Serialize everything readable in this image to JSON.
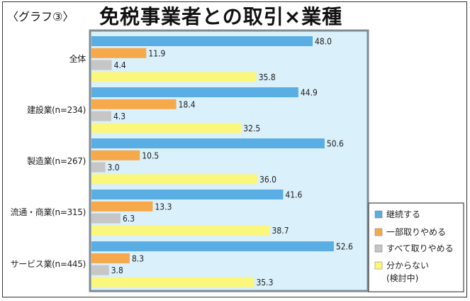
{
  "label": "〈グラフ③〉",
  "title": "免税事業者との取引×業種",
  "colors": {
    "plot_bg": "#daf0fb",
    "plot_border": "#7f8c93",
    "series": [
      "#5aaee3",
      "#f6a94b",
      "#c6c6c6",
      "#fbf77c"
    ]
  },
  "chart_data": {
    "type": "bar",
    "orientation": "horizontal",
    "xlim": [
      0,
      55
    ],
    "grid": false,
    "legend_position": "bottom-right",
    "categories": [
      "全体",
      "建設業(n=234)",
      "製造業(n=267)",
      "流通・商業(n=315)",
      "サービス業(n=445)"
    ],
    "series": [
      {
        "name": "継続する",
        "values": [
          48.0,
          44.9,
          50.6,
          41.6,
          52.6
        ]
      },
      {
        "name": "一部取りやめる",
        "values": [
          11.9,
          18.4,
          10.5,
          13.3,
          8.3
        ]
      },
      {
        "name": "すべて取りやめる",
        "values": [
          4.4,
          4.3,
          3.0,
          6.3,
          3.8
        ]
      },
      {
        "name": "分からない(検討中)",
        "values": [
          35.8,
          32.5,
          36.0,
          38.7,
          35.3
        ]
      }
    ],
    "value_labels": [
      [
        "48.0",
        "44.9",
        "50.6",
        "41.6",
        "52.6"
      ],
      [
        "11.9",
        "18.4",
        "10.5",
        "13.3",
        "8.3"
      ],
      [
        "4.4",
        "4.3",
        "3.0",
        "6.3",
        "3.8"
      ],
      [
        "35.8",
        "32.5",
        "36.0",
        "38.7",
        "35.3"
      ]
    ],
    "legend_labels": [
      "継続する",
      "一部取りやめる",
      "すべて取りやめる",
      [
        "分からない",
        "(検討中)"
      ]
    ]
  }
}
